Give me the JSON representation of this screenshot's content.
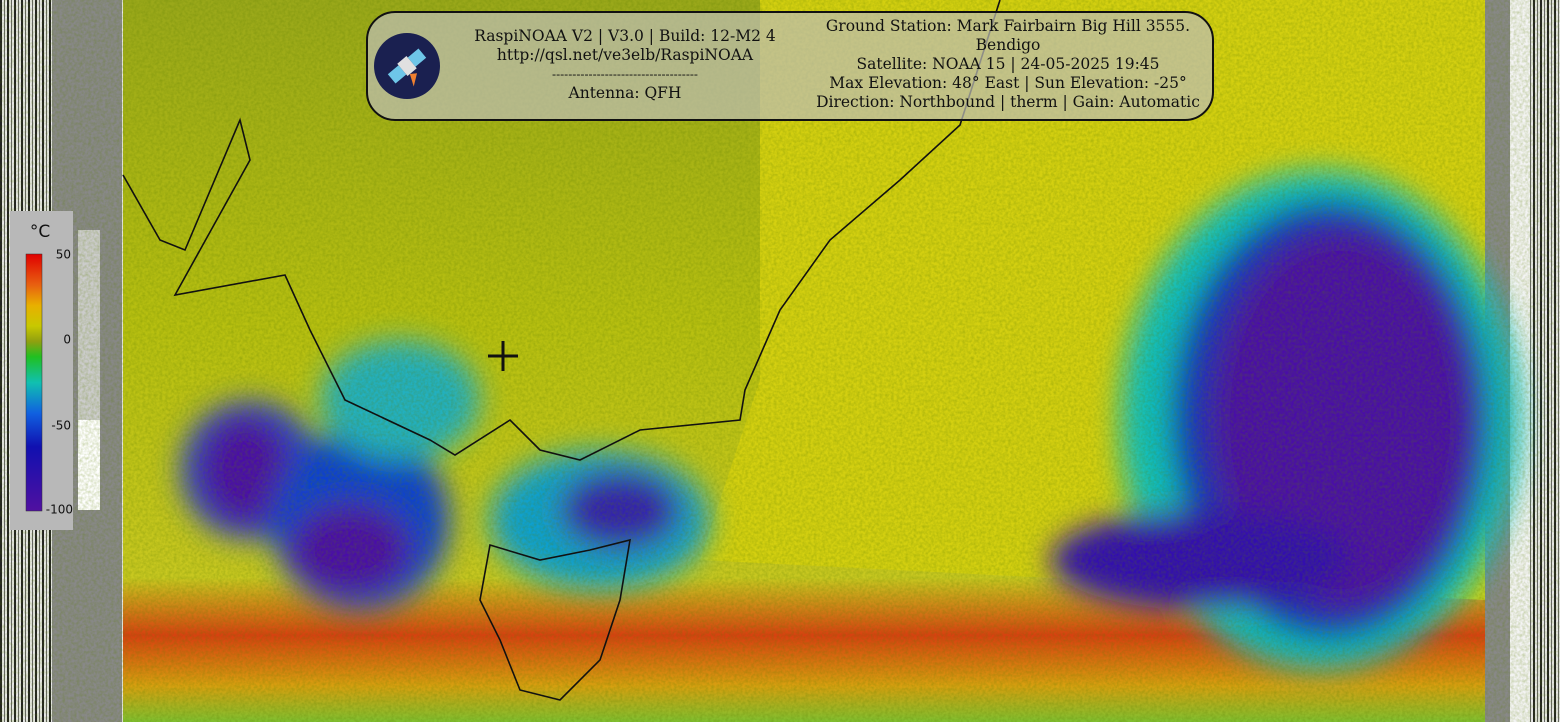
{
  "header": {
    "left": [
      "RaspiNOAA V2 | V3.0 | Build: 12-M2 4",
      "http://qsl.net/ve3elb/RaspiNOAA",
      "------------------------------------",
      "Antenna: QFH"
    ],
    "right": [
      "Ground Station: Mark Fairbairn Big Hill 3555.",
      "Bendigo",
      "Satellite: NOAA 15 | 24-05-2025 19:45",
      "Max Elevation: 48° East | Sun Elevation: -25°",
      "Direction: Northbound | therm | Gain: Automatic"
    ]
  },
  "legend": {
    "unit": "°C",
    "labels": [
      "50",
      "0",
      "-50",
      "-100"
    ]
  }
}
